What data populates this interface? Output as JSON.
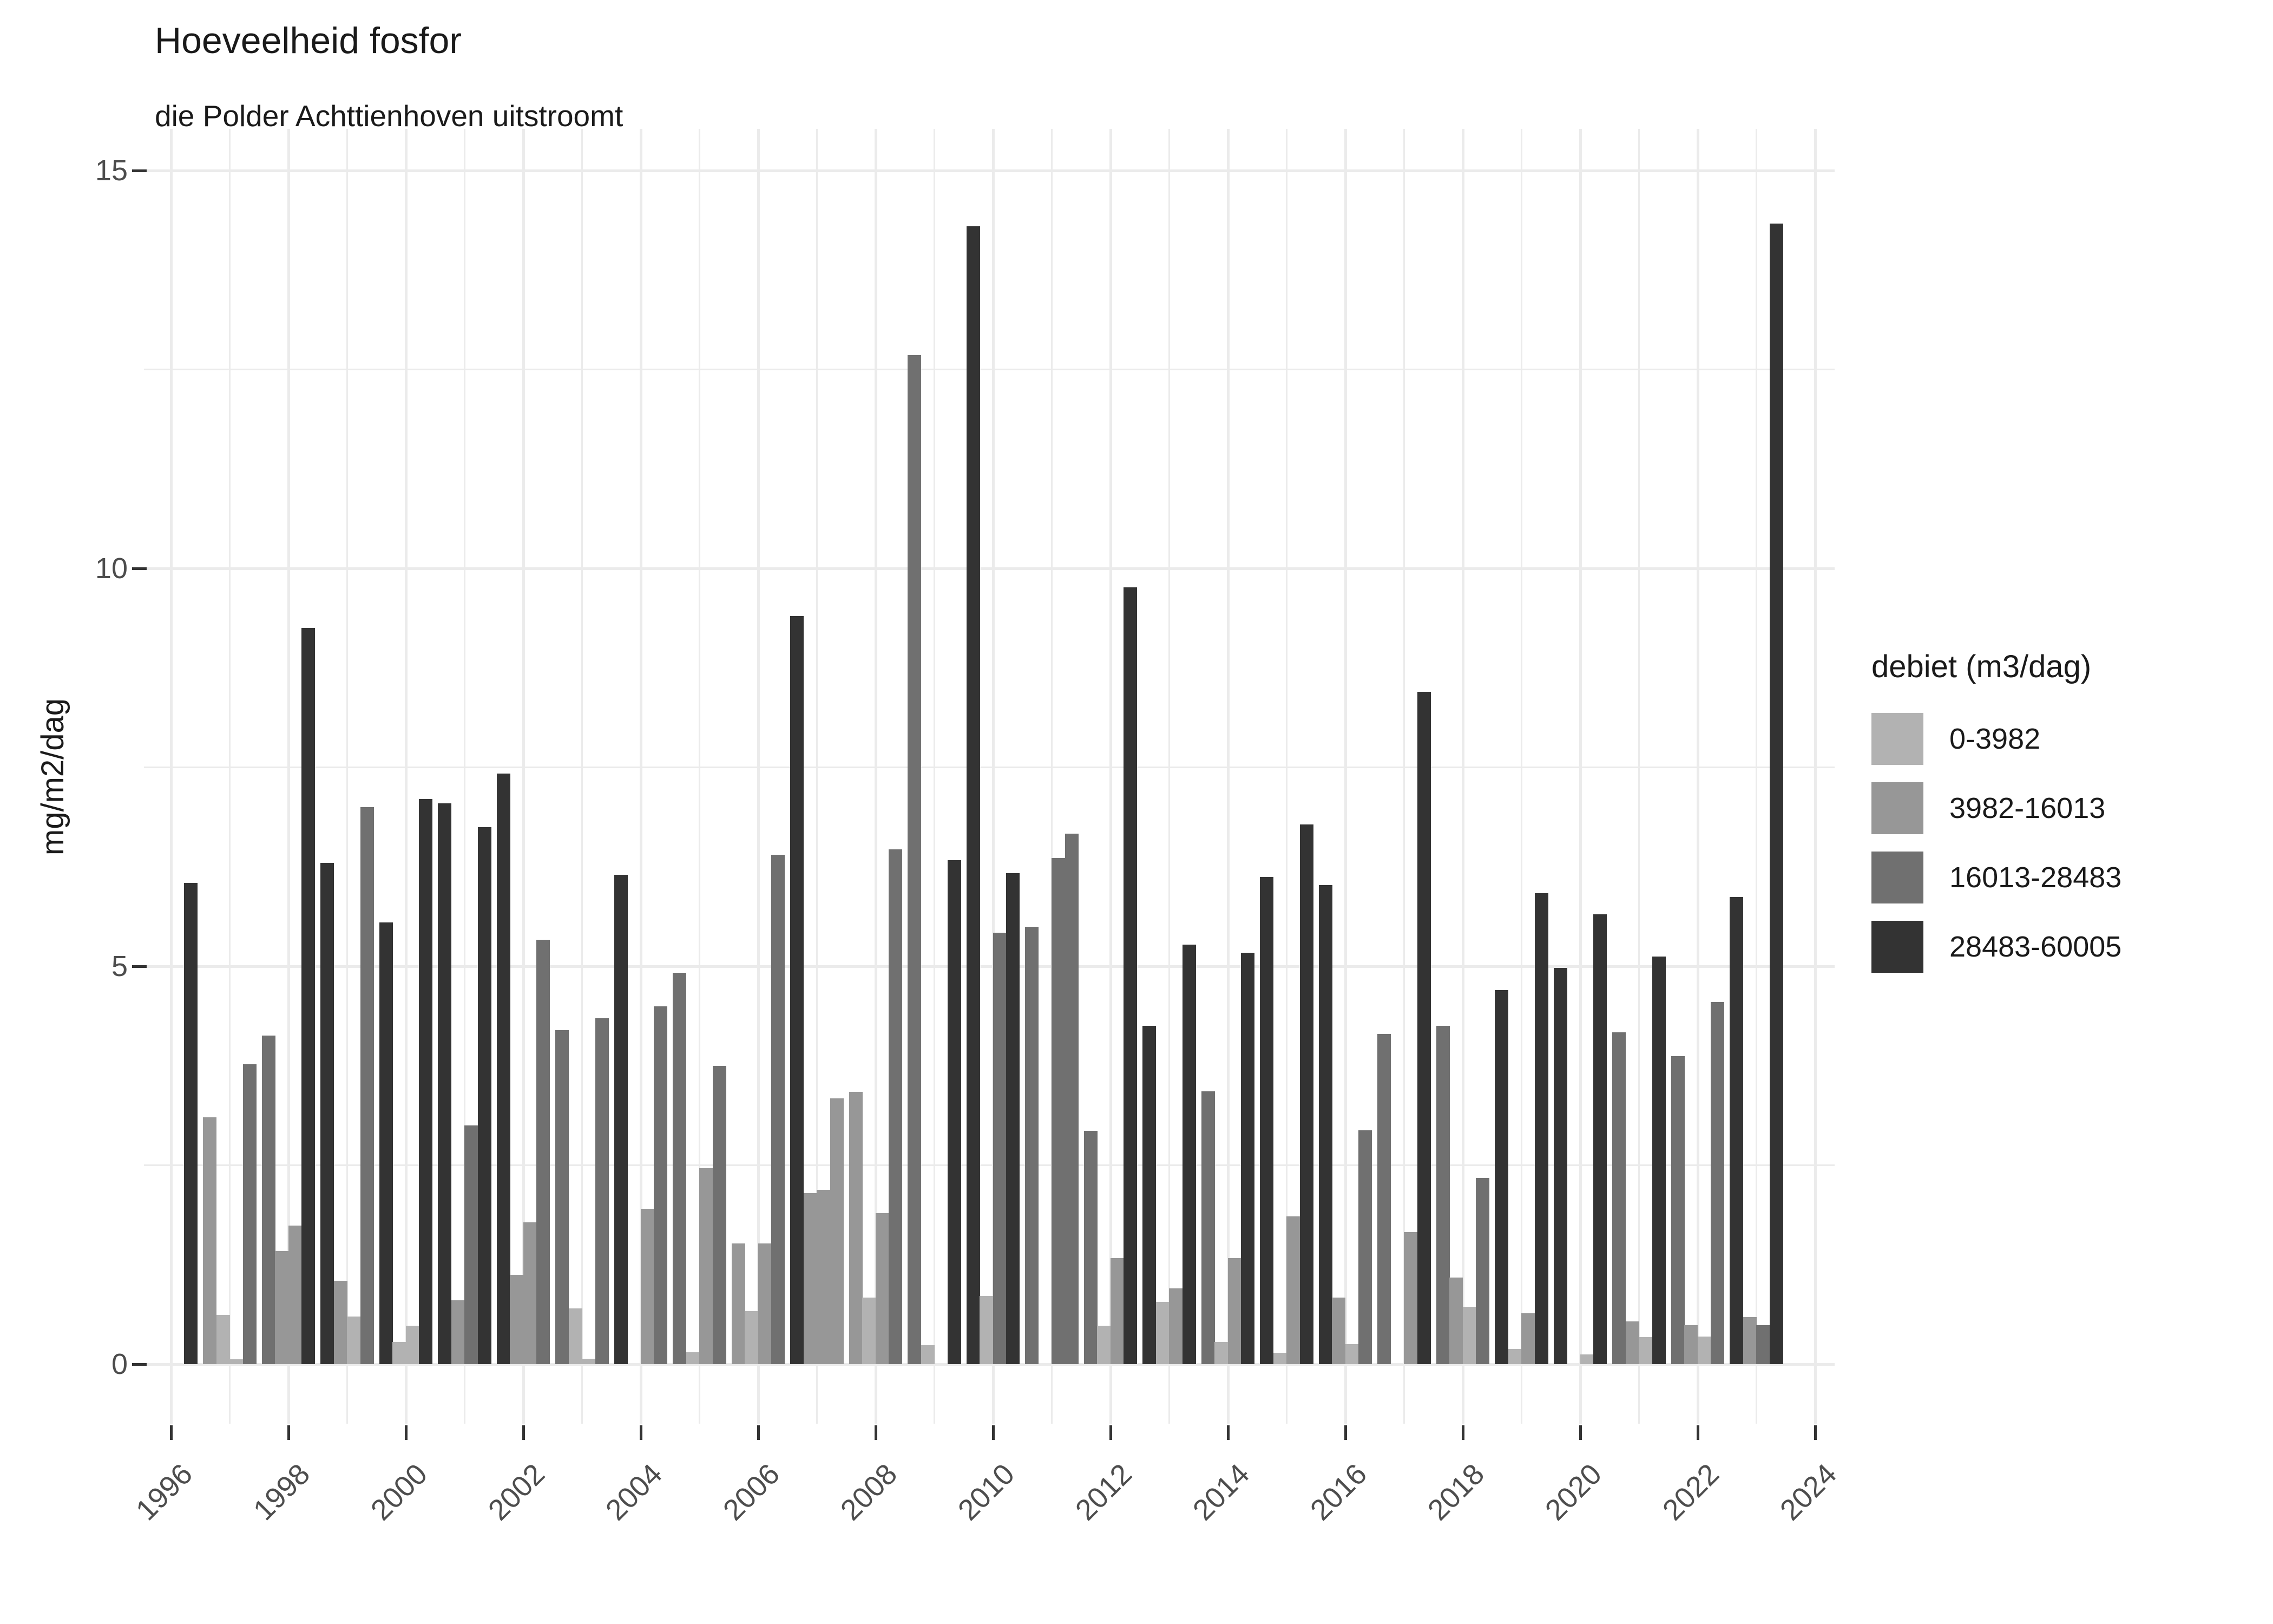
{
  "header": {
    "title": "Hoeveelheid fosfor",
    "subtitle": "die Polder Achttienhoven uitstroomt"
  },
  "chart_data": {
    "type": "bar",
    "title": "Hoeveelheid fosfor",
    "subtitle": "die Polder Achttienhoven uitstroomt",
    "xlabel": "",
    "ylabel": "mg/m2/dag",
    "ylim": [
      0,
      15
    ],
    "y_ticks": [
      0,
      5,
      10,
      15
    ],
    "y_minor_step": 2.5,
    "x_tick_years": [
      1996,
      1998,
      2000,
      2002,
      2004,
      2006,
      2008,
      2010,
      2012,
      2014,
      2016,
      2018,
      2020,
      2022,
      2024
    ],
    "x_gridline_year_min": 1996,
    "x_gridline_year_max": 2024,
    "grid": "on",
    "legend": {
      "title": "debiet (m3/dag)",
      "position": "right"
    },
    "categories": [
      {
        "label": "0-3982",
        "color": "#b2b2b2"
      },
      {
        "label": "3982-16013",
        "color": "#979797"
      },
      {
        "label": "16013-28483",
        "color": "#707070"
      },
      {
        "label": "28483-60005",
        "color": "#333333"
      }
    ],
    "bar_format": [
      "year",
      "slot",
      "category_index",
      "value_mg_per_m2_per_dag"
    ],
    "bars": [
      [
        1996,
        3,
        3,
        6.05
      ],
      [
        1997,
        0,
        1,
        3.1
      ],
      [
        1997,
        1,
        0,
        0.62
      ],
      [
        1997,
        2,
        0,
        0.06
      ],
      [
        1997,
        3,
        2,
        3.77
      ],
      [
        1998,
        0,
        2,
        4.13
      ],
      [
        1998,
        1,
        1,
        1.42
      ],
      [
        1998,
        2,
        1,
        1.74
      ],
      [
        1998,
        3,
        3,
        9.25
      ],
      [
        1999,
        0,
        3,
        6.3
      ],
      [
        1999,
        1,
        1,
        1.05
      ],
      [
        1999,
        2,
        0,
        0.6
      ],
      [
        1999,
        3,
        2,
        7.0
      ],
      [
        2000,
        0,
        3,
        5.55
      ],
      [
        2000,
        1,
        0,
        0.28
      ],
      [
        2000,
        2,
        0,
        0.48
      ],
      [
        2000,
        3,
        3,
        7.1
      ],
      [
        2001,
        0,
        3,
        7.05
      ],
      [
        2001,
        1,
        1,
        0.8
      ],
      [
        2001,
        2,
        2,
        3.0
      ],
      [
        2001,
        3,
        3,
        6.75
      ],
      [
        2002,
        0,
        3,
        7.42
      ],
      [
        2002,
        1,
        1,
        1.12
      ],
      [
        2002,
        2,
        1,
        1.78
      ],
      [
        2002,
        3,
        2,
        5.33
      ],
      [
        2003,
        0,
        2,
        4.2
      ],
      [
        2003,
        1,
        0,
        0.7
      ],
      [
        2003,
        2,
        0,
        0.07
      ],
      [
        2003,
        3,
        2,
        4.35
      ],
      [
        2004,
        0,
        3,
        6.15
      ],
      [
        2004,
        2,
        1,
        1.95
      ],
      [
        2004,
        3,
        2,
        4.5
      ],
      [
        2005,
        0,
        2,
        4.92
      ],
      [
        2005,
        1,
        0,
        0.15
      ],
      [
        2005,
        2,
        1,
        2.46
      ],
      [
        2005,
        3,
        2,
        3.75
      ],
      [
        2006,
        0,
        1,
        1.52
      ],
      [
        2006,
        1,
        0,
        0.67
      ],
      [
        2006,
        2,
        1,
        1.52
      ],
      [
        2006,
        3,
        2,
        6.4
      ],
      [
        2007,
        0,
        3,
        9.4
      ],
      [
        2007,
        1,
        1,
        2.15
      ],
      [
        2007,
        2,
        1,
        2.19
      ],
      [
        2007,
        3,
        1,
        3.34
      ],
      [
        2008,
        0,
        1,
        3.42
      ],
      [
        2008,
        1,
        0,
        0.84
      ],
      [
        2008,
        2,
        1,
        1.9
      ],
      [
        2008,
        3,
        2,
        6.47
      ],
      [
        2009,
        0,
        2,
        12.68
      ],
      [
        2009,
        1,
        0,
        0.24
      ],
      [
        2009,
        3,
        3,
        6.33
      ],
      [
        2010,
        0,
        3,
        14.3
      ],
      [
        2010,
        1,
        0,
        0.86
      ],
      [
        2010,
        2,
        2,
        5.42
      ],
      [
        2010,
        3,
        3,
        6.17
      ],
      [
        2011,
        0,
        2,
        5.5
      ],
      [
        2011,
        2,
        2,
        6.36
      ],
      [
        2011,
        3,
        2,
        6.67
      ],
      [
        2012,
        0,
        2,
        2.93
      ],
      [
        2012,
        1,
        0,
        0.48
      ],
      [
        2012,
        2,
        1,
        1.33
      ],
      [
        2012,
        3,
        3,
        9.76
      ],
      [
        2013,
        0,
        3,
        4.25
      ],
      [
        2013,
        1,
        0,
        0.78
      ],
      [
        2013,
        2,
        1,
        0.95
      ],
      [
        2013,
        3,
        3,
        5.27
      ],
      [
        2014,
        0,
        2,
        3.43
      ],
      [
        2014,
        1,
        0,
        0.28
      ],
      [
        2014,
        2,
        1,
        1.33
      ],
      [
        2014,
        3,
        3,
        5.17
      ],
      [
        2015,
        0,
        3,
        6.12
      ],
      [
        2015,
        1,
        0,
        0.14
      ],
      [
        2015,
        2,
        1,
        1.86
      ],
      [
        2015,
        3,
        3,
        6.78
      ],
      [
        2016,
        0,
        3,
        6.02
      ],
      [
        2016,
        1,
        1,
        0.84
      ],
      [
        2016,
        2,
        0,
        0.25
      ],
      [
        2016,
        3,
        2,
        2.94
      ],
      [
        2017,
        0,
        2,
        4.15
      ],
      [
        2017,
        2,
        1,
        1.66
      ],
      [
        2017,
        3,
        3,
        8.45
      ],
      [
        2018,
        0,
        2,
        4.25
      ],
      [
        2018,
        1,
        1,
        1.09
      ],
      [
        2018,
        2,
        0,
        0.72
      ],
      [
        2018,
        3,
        2,
        2.34
      ],
      [
        2019,
        0,
        3,
        4.7
      ],
      [
        2019,
        1,
        0,
        0.19
      ],
      [
        2019,
        2,
        1,
        0.64
      ],
      [
        2019,
        3,
        3,
        5.92
      ],
      [
        2020,
        0,
        3,
        4.98
      ],
      [
        2020,
        2,
        0,
        0.12
      ],
      [
        2020,
        3,
        3,
        5.65
      ],
      [
        2021,
        0,
        2,
        4.17
      ],
      [
        2021,
        1,
        1,
        0.54
      ],
      [
        2021,
        2,
        0,
        0.34
      ],
      [
        2021,
        3,
        3,
        5.12
      ],
      [
        2022,
        0,
        2,
        3.87
      ],
      [
        2022,
        1,
        1,
        0.49
      ],
      [
        2022,
        2,
        0,
        0.35
      ],
      [
        2022,
        3,
        2,
        4.55
      ],
      [
        2023,
        0,
        3,
        5.87
      ],
      [
        2023,
        1,
        1,
        0.59
      ],
      [
        2023,
        2,
        2,
        0.49
      ],
      [
        2023,
        3,
        3,
        14.33
      ]
    ]
  }
}
